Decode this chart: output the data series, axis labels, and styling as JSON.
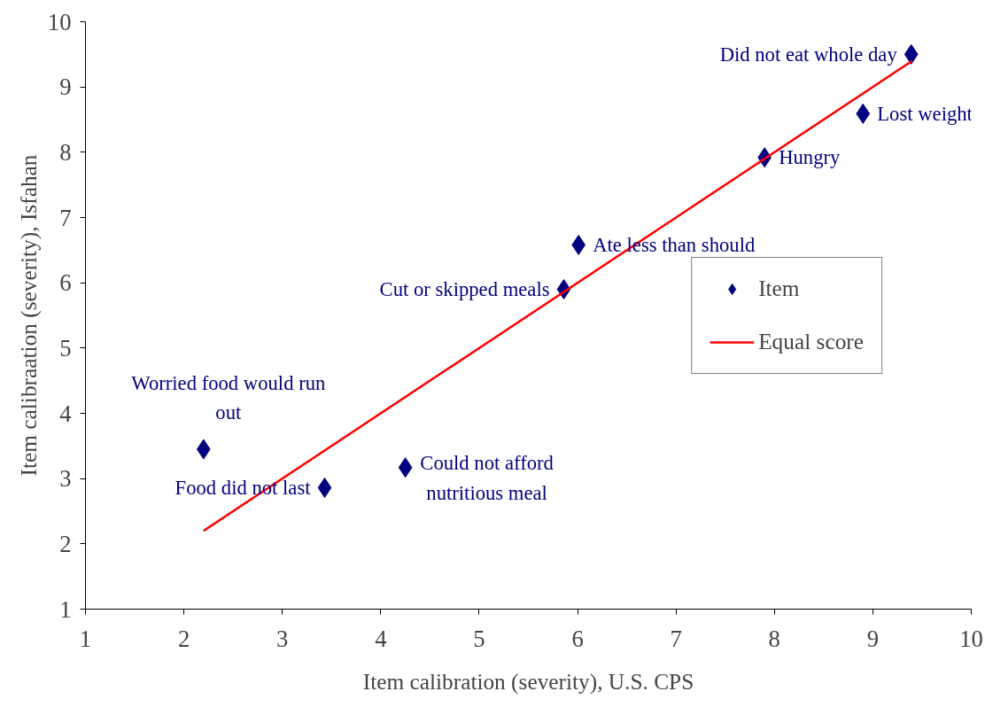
{
  "chart_data": {
    "type": "scatter",
    "xlabel": "Item calibration (severity), U.S. CPS",
    "ylabel": "Item calibraation (severity), Isfahan",
    "xlim": [
      1,
      10
    ],
    "ylim": [
      1,
      10
    ],
    "xticks": [
      1,
      2,
      3,
      4,
      5,
      6,
      7,
      8,
      9,
      10
    ],
    "yticks": [
      1,
      2,
      3,
      4,
      5,
      6,
      7,
      8,
      9,
      10
    ],
    "grid": false,
    "legend": "right",
    "series": [
      {
        "name": "Item",
        "marker": "diamond",
        "color": "#000080",
        "x": [
          9.39,
          8.9,
          7.9,
          6.01,
          5.86,
          2.2,
          3.43,
          4.25
        ],
        "values": [
          9.5,
          8.59,
          7.92,
          6.58,
          5.9,
          3.45,
          2.86,
          3.17
        ]
      },
      {
        "name": "Equal score",
        "type": "line",
        "line_style": "solid",
        "color": "#ff0000",
        "x": [
          2.2,
          9.4
        ],
        "values": [
          2.2,
          9.4
        ]
      }
    ],
    "annotations": [
      {
        "text": "Did not eat whole day",
        "x": 9.39,
        "y": 9.5
      },
      {
        "text": "Lost weight",
        "x": 8.9,
        "y": 8.59
      },
      {
        "text": "Hungry",
        "x": 7.9,
        "y": 7.92
      },
      {
        "text": "Ate less than should",
        "x": 6.01,
        "y": 6.58
      },
      {
        "text": "Cut or skipped meals",
        "x": 5.86,
        "y": 5.9
      },
      {
        "text": "Worried food would run\nout",
        "x": 2.2,
        "y": 3.45
      },
      {
        "text": "Food did not last",
        "x": 3.43,
        "y": 2.86
      },
      {
        "text": "Could not afford\nnutritious meal",
        "x": 4.25,
        "y": 3.17
      }
    ]
  }
}
